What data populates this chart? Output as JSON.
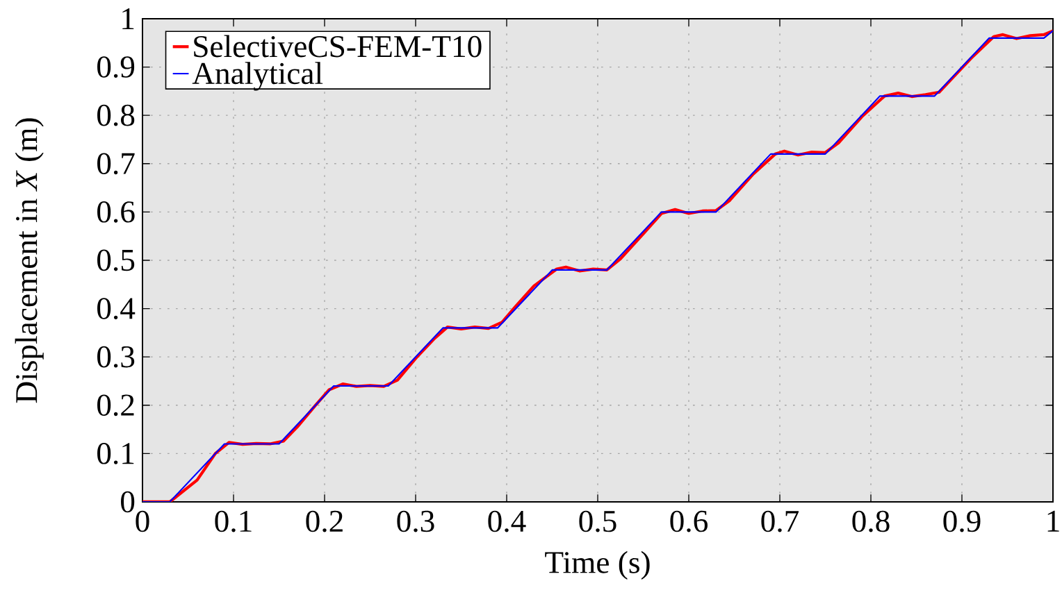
{
  "chart_data": {
    "type": "line",
    "xlabel": "Time (s)",
    "ylabel": "Displacement in *X* (m)",
    "xlim": [
      0,
      1
    ],
    "ylim": [
      0,
      1
    ],
    "xticks": [
      0,
      0.1,
      0.2,
      0.3,
      0.4,
      0.5,
      0.6,
      0.7,
      0.8,
      0.9,
      1
    ],
    "yticks": [
      0,
      0.1,
      0.2,
      0.3,
      0.4,
      0.5,
      0.6,
      0.7,
      0.8,
      0.9,
      1
    ],
    "grid": true,
    "legend": "top left",
    "line_style": "solid",
    "marker": "none",
    "series": [
      {
        "name": "SelectiveCS-FEM-T10",
        "color": "#ff0000",
        "x": [
          0,
          0.03,
          0.04,
          0.06,
          0.08,
          0.095,
          0.11,
          0.125,
          0.14,
          0.155,
          0.17,
          0.19,
          0.205,
          0.22,
          0.235,
          0.25,
          0.265,
          0.28,
          0.3,
          0.32,
          0.335,
          0.35,
          0.365,
          0.38,
          0.395,
          0.41,
          0.43,
          0.455,
          0.465,
          0.48,
          0.495,
          0.51,
          0.525,
          0.55,
          0.57,
          0.585,
          0.6,
          0.615,
          0.63,
          0.645,
          0.67,
          0.695,
          0.705,
          0.72,
          0.735,
          0.75,
          0.765,
          0.79,
          0.815,
          0.83,
          0.845,
          0.86,
          0.875,
          0.89,
          0.91,
          0.935,
          0.945,
          0.96,
          0.975,
          0.99,
          1.0
        ],
        "values": [
          0,
          0,
          0.015,
          0.045,
          0.1,
          0.123,
          0.119,
          0.121,
          0.12,
          0.126,
          0.155,
          0.2,
          0.232,
          0.244,
          0.239,
          0.241,
          0.239,
          0.252,
          0.297,
          0.337,
          0.362,
          0.358,
          0.362,
          0.359,
          0.372,
          0.405,
          0.447,
          0.482,
          0.486,
          0.478,
          0.482,
          0.48,
          0.503,
          0.555,
          0.597,
          0.605,
          0.597,
          0.602,
          0.603,
          0.624,
          0.677,
          0.72,
          0.726,
          0.718,
          0.724,
          0.723,
          0.744,
          0.797,
          0.84,
          0.846,
          0.839,
          0.843,
          0.848,
          0.878,
          0.918,
          0.963,
          0.967,
          0.959,
          0.965,
          0.967,
          0.975
        ]
      },
      {
        "name": "Analytical",
        "color": "#0000ff",
        "x": [
          0,
          0.03,
          0.09,
          0.15,
          0.21,
          0.27,
          0.33,
          0.39,
          0.45,
          0.51,
          0.57,
          0.63,
          0.69,
          0.75,
          0.81,
          0.87,
          0.93,
          0.99,
          1.0
        ],
        "values": [
          0,
          0,
          0.12,
          0.12,
          0.24,
          0.24,
          0.36,
          0.36,
          0.48,
          0.48,
          0.6,
          0.6,
          0.72,
          0.72,
          0.84,
          0.84,
          0.96,
          0.96,
          0.975
        ]
      }
    ]
  }
}
